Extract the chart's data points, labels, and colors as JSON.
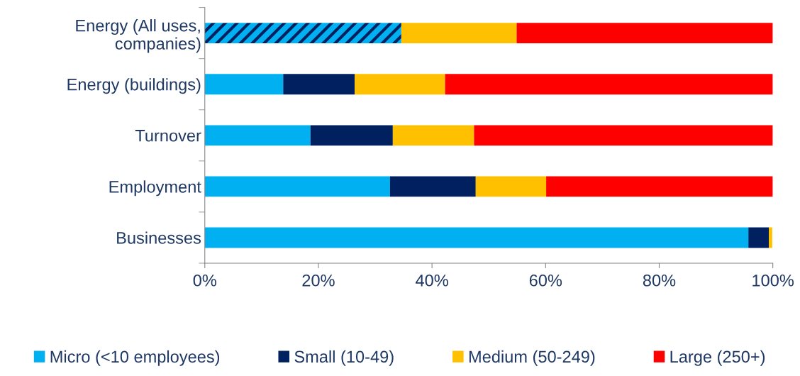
{
  "chart_data": {
    "type": "bar",
    "orientation": "horizontal",
    "stacked": true,
    "categories": [
      "Energy (All uses,\ncompanies)",
      "Energy (buildings)",
      "Turnover",
      "Employment",
      "Businesses"
    ],
    "series": [
      {
        "color": "#00b0f0",
        "values": [
          34.6,
          null,
          null,
          null,
          null
        ]
      },
      {
        "name": "Micro (<10 employees)",
        "color": "#00b0f0",
        "values": [
          null,
          13.8,
          18.6,
          32.6,
          95.7
        ]
      },
      {
        "name": "Small (10-49)",
        "color": "#002060",
        "values": [
          null,
          12.6,
          14.5,
          15.1,
          3.6
        ]
      },
      {
        "name": "Medium (50-249)",
        "color": "#ffc000",
        "values": [
          20.3,
          15.9,
          14.3,
          12.4,
          0.6
        ]
      },
      {
        "name": "Large (250+)",
        "color": "#ff0000",
        "values": [
          45.1,
          57.7,
          52.6,
          39.9,
          null
        ]
      }
    ],
    "xlim": [
      0,
      100
    ],
    "xticks": [
      {
        "value": 0,
        "label": "0%"
      },
      {
        "value": 20,
        "label": "20%"
      },
      {
        "value": 40,
        "label": "40%"
      },
      {
        "value": 60,
        "label": "60%"
      },
      {
        "value": 80,
        "label": "80%"
      },
      {
        "value": 100,
        "label": "100%"
      }
    ],
    "grid": false,
    "legend": "bottom"
  }
}
